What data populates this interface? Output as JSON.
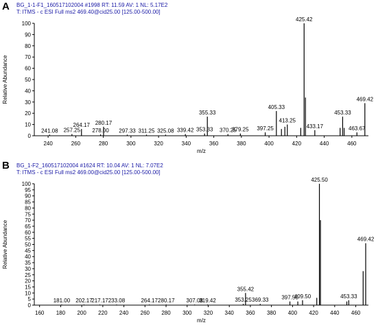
{
  "panels": [
    {
      "letter": "A",
      "header_line1": "BG_1-1-F1_160517102004 #1998   RT: 11.59   AV: 1   NL: 5.17E2",
      "header_line2": "T: ITMS - c ESI Full ms2 469.40@cid25.00 [125.00-500.00]"
    },
    {
      "letter": "B",
      "header_line1": "BG_1-F2_160517102004 #1624   RT: 10.04   AV: 1   NL: 7.07E2",
      "header_line2": "T: ITMS - c ESI Full ms2 469.00@cid25.00 [125.00-500.00]"
    }
  ],
  "chart_data": [
    {
      "type": "bar",
      "subtype": "mass-spectrum-stick",
      "xlabel": "m/z",
      "ylabel": "Relative Abundance",
      "xlim": [
        230,
        472
      ],
      "ylim": [
        0,
        100
      ],
      "xticks": [
        240,
        260,
        280,
        300,
        320,
        340,
        360,
        380,
        400,
        420,
        440,
        460
      ],
      "yticks": [
        0,
        10,
        20,
        30,
        40,
        50,
        60,
        70,
        80,
        90,
        100
      ],
      "color": "#000000",
      "peaks": [
        {
          "x": 241.08,
          "y": 1,
          "label": "241.08"
        },
        {
          "x": 257.25,
          "y": 1.5,
          "label": "257.25"
        },
        {
          "x": 264.17,
          "y": 6,
          "label": "264.17"
        },
        {
          "x": 278.0,
          "y": 1.2,
          "label": "278.00"
        },
        {
          "x": 280.17,
          "y": 8,
          "label": "280.17"
        },
        {
          "x": 297.33,
          "y": 1,
          "label": "297.33"
        },
        {
          "x": 311.25,
          "y": 1,
          "label": "311.25"
        },
        {
          "x": 325.08,
          "y": 1,
          "label": "325.08"
        },
        {
          "x": 339.42,
          "y": 1.5,
          "label": "339.42"
        },
        {
          "x": 353.33,
          "y": 2,
          "label": "353.33"
        },
        {
          "x": 355.33,
          "y": 17,
          "label": "355.33"
        },
        {
          "x": 370.25,
          "y": 1.5,
          "label": "370.25"
        },
        {
          "x": 379.25,
          "y": 2,
          "label": "379.25"
        },
        {
          "x": 397.25,
          "y": 3,
          "label": "397.25"
        },
        {
          "x": 405.33,
          "y": 22,
          "label": "405.33"
        },
        {
          "x": 409.0,
          "y": 6,
          "label": ""
        },
        {
          "x": 411.5,
          "y": 8,
          "label": ""
        },
        {
          "x": 413.25,
          "y": 10,
          "label": "413.25"
        },
        {
          "x": 423.0,
          "y": 7,
          "label": ""
        },
        {
          "x": 425.42,
          "y": 100,
          "label": "425.42"
        },
        {
          "x": 426.4,
          "y": 34,
          "label": ""
        },
        {
          "x": 433.17,
          "y": 5,
          "label": "433.17"
        },
        {
          "x": 451.5,
          "y": 7,
          "label": ""
        },
        {
          "x": 453.33,
          "y": 17,
          "label": "453.33"
        },
        {
          "x": 454.4,
          "y": 7,
          "label": ""
        },
        {
          "x": 463.67,
          "y": 3,
          "label": "463.67"
        },
        {
          "x": 469.42,
          "y": 29,
          "label": "469.42"
        }
      ]
    },
    {
      "type": "bar",
      "subtype": "mass-spectrum-stick",
      "xlabel": "m/z",
      "ylabel": "Relative Abundance",
      "xlim": [
        155,
        472
      ],
      "ylim": [
        0,
        100
      ],
      "xticks": [
        160,
        180,
        200,
        220,
        240,
        260,
        280,
        300,
        320,
        340,
        360,
        380,
        400,
        420,
        440,
        460
      ],
      "yticks": [
        0,
        5,
        10,
        15,
        20,
        25,
        30,
        35,
        40,
        45,
        50,
        55,
        60,
        65,
        70,
        75,
        80,
        85,
        90,
        95,
        100
      ],
      "color": "#000000",
      "peaks": [
        {
          "x": 181.0,
          "y": 0.5,
          "label": "181.00"
        },
        {
          "x": 202.17,
          "y": 0.5,
          "label": "202.17"
        },
        {
          "x": 217.17,
          "y": 0.5,
          "label": "217.17"
        },
        {
          "x": 233.08,
          "y": 0.5,
          "label": "233.08"
        },
        {
          "x": 264.17,
          "y": 0.5,
          "label": "264.17"
        },
        {
          "x": 280.17,
          "y": 0.5,
          "label": "280.17"
        },
        {
          "x": 307.08,
          "y": 0.5,
          "label": "307.08"
        },
        {
          "x": 319.42,
          "y": 0.5,
          "label": "319.42"
        },
        {
          "x": 353.25,
          "y": 1,
          "label": "353.25"
        },
        {
          "x": 355.42,
          "y": 10,
          "label": "355.42"
        },
        {
          "x": 369.33,
          "y": 1,
          "label": "369.33"
        },
        {
          "x": 397.5,
          "y": 3,
          "label": "397.50"
        },
        {
          "x": 405.0,
          "y": 3,
          "label": ""
        },
        {
          "x": 409.5,
          "y": 4,
          "label": "409.50"
        },
        {
          "x": 423.0,
          "y": 6,
          "label": ""
        },
        {
          "x": 425.5,
          "y": 100,
          "label": "425.50"
        },
        {
          "x": 426.5,
          "y": 70,
          "label": ""
        },
        {
          "x": 451.5,
          "y": 3,
          "label": ""
        },
        {
          "x": 453.33,
          "y": 4,
          "label": "453.33"
        },
        {
          "x": 467.0,
          "y": 28,
          "label": ""
        },
        {
          "x": 469.42,
          "y": 51,
          "label": "469.42"
        }
      ]
    }
  ]
}
